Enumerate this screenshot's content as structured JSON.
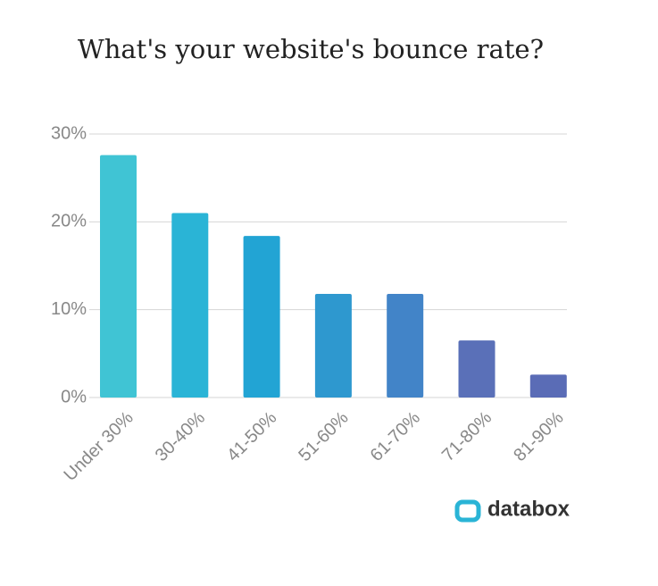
{
  "chart_data": {
    "type": "bar",
    "title": "What's your website's bounce rate?",
    "categories": [
      "Under 30%",
      "30-40%",
      "41-50%",
      "51-60%",
      "61-70%",
      "71-80%",
      "81-90%"
    ],
    "values": [
      27.6,
      21,
      18.4,
      11.8,
      11.8,
      6.5,
      2.6
    ],
    "colors": [
      "#40c4d4",
      "#2ab4d6",
      "#22a4d4",
      "#2e98cf",
      "#4284c8",
      "#5a70b8",
      "#5a6cb6"
    ],
    "ylim": [
      0,
      30
    ],
    "yticks": [
      {
        "value": 0,
        "label": "0%"
      },
      {
        "value": 10,
        "label": "10%"
      },
      {
        "value": 20,
        "label": "20%"
      },
      {
        "value": 30,
        "label": "30%"
      }
    ],
    "grid": true,
    "brand": "databox"
  }
}
